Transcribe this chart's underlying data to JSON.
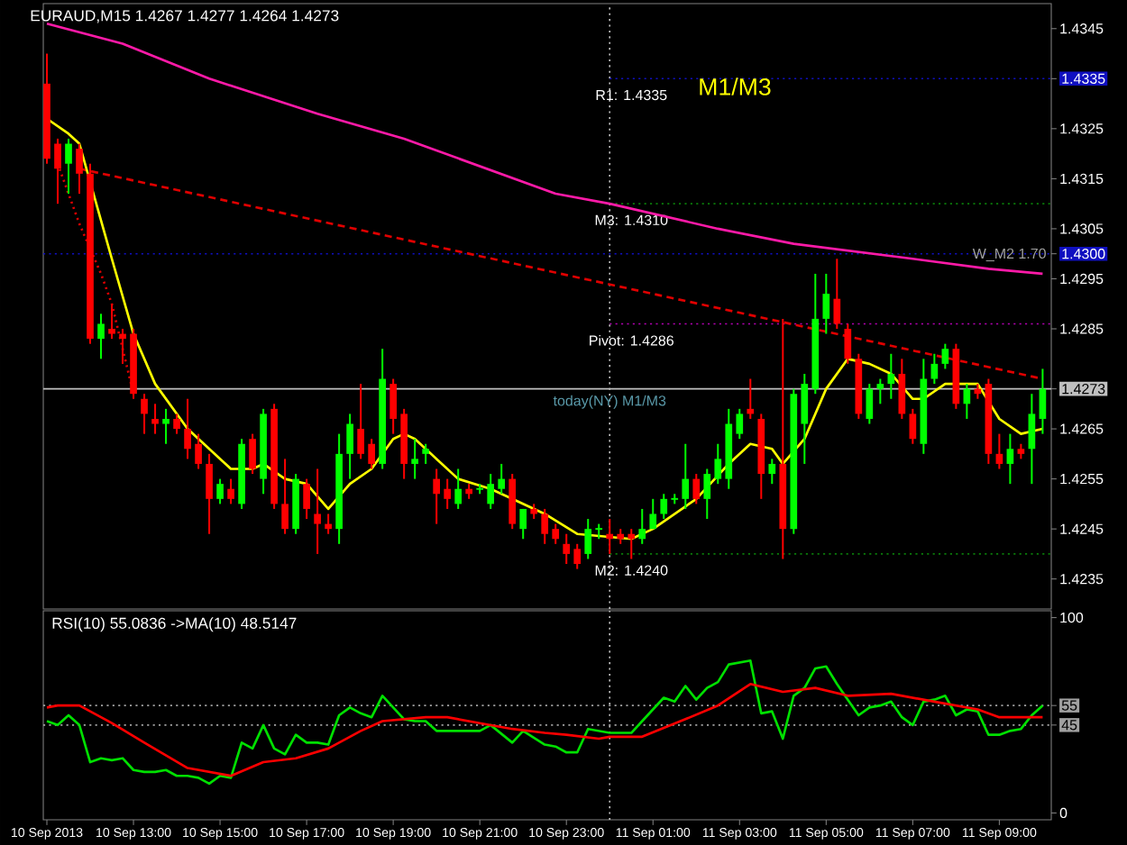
{
  "chart_data": [
    {
      "type": "candlestick",
      "title": "EURAUD,M15 1.4267 1.4277 1.4264 1.4273",
      "x": [
        "2013-09-10T11:00",
        "2013-09-10T11:15",
        "2013-09-10T11:30",
        "2013-09-10T11:45",
        "2013-09-10T12:00",
        "2013-09-10T12:15",
        "2013-09-10T12:30",
        "2013-09-10T12:45",
        "2013-09-10T13:00",
        "2013-09-10T13:15",
        "2013-09-10T13:30",
        "2013-09-10T13:45",
        "2013-09-10T14:00",
        "2013-09-10T14:15",
        "2013-09-10T14:30",
        "2013-09-10T14:45",
        "2013-09-10T15:00",
        "2013-09-10T15:15",
        "2013-09-10T15:30",
        "2013-09-10T15:45",
        "2013-09-10T16:00",
        "2013-09-10T16:15",
        "2013-09-10T16:30",
        "2013-09-10T16:45",
        "2013-09-10T17:00",
        "2013-09-10T17:15",
        "2013-09-10T17:30",
        "2013-09-10T17:45",
        "2013-09-10T18:00",
        "2013-09-10T18:15",
        "2013-09-10T18:30",
        "2013-09-10T18:45",
        "2013-09-10T19:00",
        "2013-09-10T19:15",
        "2013-09-10T19:30",
        "2013-09-10T19:45",
        "2013-09-10T20:00",
        "2013-09-10T20:15",
        "2013-09-10T20:30",
        "2013-09-10T20:45",
        "2013-09-10T21:00",
        "2013-09-10T21:15",
        "2013-09-10T21:30",
        "2013-09-10T21:45",
        "2013-09-10T22:00",
        "2013-09-10T22:15",
        "2013-09-10T22:30",
        "2013-09-10T22:45",
        "2013-09-10T23:00",
        "2013-09-10T23:15",
        "2013-09-10T23:30",
        "2013-09-10T23:45",
        "2013-09-11T00:00",
        "2013-09-11T00:15",
        "2013-09-11T00:30",
        "2013-09-11T00:45",
        "2013-09-11T01:00",
        "2013-09-11T01:15",
        "2013-09-11T01:30",
        "2013-09-11T01:45",
        "2013-09-11T02:00",
        "2013-09-11T02:15",
        "2013-09-11T02:30",
        "2013-09-11T02:45",
        "2013-09-11T03:00",
        "2013-09-11T03:15",
        "2013-09-11T03:30",
        "2013-09-11T03:45",
        "2013-09-11T04:00",
        "2013-09-11T04:15",
        "2013-09-11T04:30",
        "2013-09-11T04:45",
        "2013-09-11T05:00",
        "2013-09-11T05:15",
        "2013-09-11T05:30",
        "2013-09-11T05:45",
        "2013-09-11T06:00",
        "2013-09-11T06:15",
        "2013-09-11T06:30",
        "2013-09-11T06:45",
        "2013-09-11T07:00",
        "2013-09-11T07:15",
        "2013-09-11T07:30",
        "2013-09-11T07:45",
        "2013-09-11T08:00",
        "2013-09-11T08:15",
        "2013-09-11T08:30",
        "2013-09-11T08:45",
        "2013-09-11T09:00",
        "2013-09-11T09:15",
        "2013-09-11T09:30",
        "2013-09-11T09:45",
        "2013-09-11T10:00"
      ],
      "ohlc": [
        [
          1.4334,
          1.434,
          1.4318,
          1.4319
        ],
        [
          1.4322,
          1.4323,
          1.431,
          1.4317
        ],
        [
          1.4318,
          1.4323,
          1.4312,
          1.4322
        ],
        [
          1.4321,
          1.4322,
          1.4312,
          1.4316
        ],
        [
          1.4316,
          1.4318,
          1.4282,
          1.4283
        ],
        [
          1.4283,
          1.4288,
          1.4279,
          1.4286
        ],
        [
          1.4285,
          1.429,
          1.4283,
          1.4284
        ],
        [
          1.4284,
          1.4285,
          1.4278,
          1.4283
        ],
        [
          1.4284,
          1.4285,
          1.4271,
          1.4272
        ],
        [
          1.4271,
          1.4272,
          1.4264,
          1.4268
        ],
        [
          1.4267,
          1.427,
          1.4264,
          1.4266
        ],
        [
          1.4266,
          1.4269,
          1.4262,
          1.4267
        ],
        [
          1.4267,
          1.4268,
          1.4264,
          1.4265
        ],
        [
          1.4265,
          1.4271,
          1.4259,
          1.4261
        ],
        [
          1.4262,
          1.4264,
          1.4257,
          1.4258
        ],
        [
          1.4258,
          1.426,
          1.4244,
          1.4251
        ],
        [
          1.4251,
          1.4255,
          1.425,
          1.4254
        ],
        [
          1.4253,
          1.4255,
          1.425,
          1.4251
        ],
        [
          1.425,
          1.4263,
          1.4249,
          1.4262
        ],
        [
          1.4263,
          1.4264,
          1.4256,
          1.4257
        ],
        [
          1.4255,
          1.4269,
          1.4252,
          1.4268
        ],
        [
          1.4269,
          1.427,
          1.4249,
          1.425
        ],
        [
          1.425,
          1.4259,
          1.4244,
          1.4245
        ],
        [
          1.4245,
          1.4256,
          1.4244,
          1.4255
        ],
        [
          1.4254,
          1.4255,
          1.4247,
          1.4249
        ],
        [
          1.4248,
          1.4257,
          1.424,
          1.4246
        ],
        [
          1.4246,
          1.4248,
          1.4244,
          1.4245
        ],
        [
          1.4245,
          1.4264,
          1.4242,
          1.426
        ],
        [
          1.426,
          1.4268,
          1.4255,
          1.4266
        ],
        [
          1.4265,
          1.4274,
          1.4259,
          1.426
        ],
        [
          1.4262,
          1.4263,
          1.4257,
          1.4258
        ],
        [
          1.4258,
          1.4281,
          1.4257,
          1.4275
        ],
        [
          1.4274,
          1.4275,
          1.4264,
          1.4267
        ],
        [
          1.4268,
          1.4269,
          1.4255,
          1.4258
        ],
        [
          1.4258,
          1.4263,
          1.4255,
          1.4259
        ],
        [
          1.426,
          1.4262,
          1.4258,
          1.4261
        ],
        [
          1.4255,
          1.4257,
          1.4246,
          1.4252
        ],
        [
          1.4253,
          1.4255,
          1.4249,
          1.4251
        ],
        [
          1.425,
          1.4257,
          1.4249,
          1.4253
        ],
        [
          1.4253,
          1.4254,
          1.4251,
          1.4252
        ],
        [
          1.4253,
          1.4254,
          1.4252,
          1.4253
        ],
        [
          1.425,
          1.4256,
          1.4249,
          1.4254
        ],
        [
          1.4253,
          1.4258,
          1.4252,
          1.4255
        ],
        [
          1.4255,
          1.4256,
          1.4245,
          1.4246
        ],
        [
          1.4245,
          1.4249,
          1.4243,
          1.4249
        ],
        [
          1.4249,
          1.425,
          1.4247,
          1.4248
        ],
        [
          1.4248,
          1.4249,
          1.4242,
          1.4244
        ],
        [
          1.4245,
          1.4246,
          1.4242,
          1.4243
        ],
        [
          1.4242,
          1.4244,
          1.4238,
          1.424
        ],
        [
          1.4241,
          1.4242,
          1.4237,
          1.4238
        ],
        [
          1.424,
          1.4247,
          1.4239,
          1.4245
        ],
        [
          1.4245,
          1.4246,
          1.4243,
          1.4245
        ],
        [
          1.4244,
          1.4247,
          1.424,
          1.4243
        ],
        [
          1.4244,
          1.4245,
          1.4242,
          1.4243
        ],
        [
          1.4244,
          1.4245,
          1.4239,
          1.4243
        ],
        [
          1.4243,
          1.4249,
          1.4242,
          1.4245
        ],
        [
          1.4245,
          1.4251,
          1.4245,
          1.4248
        ],
        [
          1.4248,
          1.4252,
          1.4247,
          1.4251
        ],
        [
          1.4251,
          1.4252,
          1.425,
          1.4251
        ],
        [
          1.4251,
          1.4262,
          1.4249,
          1.4255
        ],
        [
          1.4255,
          1.4256,
          1.425,
          1.4251
        ],
        [
          1.4251,
          1.4257,
          1.4247,
          1.4256
        ],
        [
          1.4255,
          1.4262,
          1.4254,
          1.4259
        ],
        [
          1.4255,
          1.4269,
          1.4253,
          1.4266
        ],
        [
          1.4264,
          1.4269,
          1.4263,
          1.4268
        ],
        [
          1.4269,
          1.4275,
          1.4267,
          1.4268
        ],
        [
          1.4267,
          1.4268,
          1.4251,
          1.4256
        ],
        [
          1.4256,
          1.4259,
          1.4254,
          1.4258
        ],
        [
          1.4258,
          1.4287,
          1.4239,
          1.4245
        ],
        [
          1.4245,
          1.4273,
          1.4244,
          1.4272
        ],
        [
          1.4266,
          1.4276,
          1.4258,
          1.4274
        ],
        [
          1.4273,
          1.4296,
          1.4272,
          1.4287
        ],
        [
          1.4287,
          1.4296,
          1.4284,
          1.4292
        ],
        [
          1.4291,
          1.4299,
          1.4285,
          1.4286
        ],
        [
          1.4285,
          1.4286,
          1.4278,
          1.4279
        ],
        [
          1.4279,
          1.428,
          1.4267,
          1.4268
        ],
        [
          1.4267,
          1.4274,
          1.4266,
          1.4273
        ],
        [
          1.4273,
          1.4275,
          1.427,
          1.4274
        ],
        [
          1.4274,
          1.428,
          1.4271,
          1.4276
        ],
        [
          1.4276,
          1.4279,
          1.4267,
          1.4268
        ],
        [
          1.4268,
          1.4269,
          1.4262,
          1.4263
        ],
        [
          1.4262,
          1.4279,
          1.426,
          1.4275
        ],
        [
          1.4275,
          1.428,
          1.4274,
          1.4278
        ],
        [
          1.4278,
          1.4282,
          1.4277,
          1.4281
        ],
        [
          1.4281,
          1.4282,
          1.4269,
          1.427
        ],
        [
          1.427,
          1.4274,
          1.4267,
          1.4273
        ],
        [
          1.4273,
          1.4274,
          1.4271,
          1.4272
        ],
        [
          1.4274,
          1.4275,
          1.4258,
          1.426
        ],
        [
          1.426,
          1.4264,
          1.4257,
          1.4258
        ],
        [
          1.4258,
          1.4264,
          1.4254,
          1.4261
        ],
        [
          1.4261,
          1.4262,
          1.4259,
          1.426
        ],
        [
          1.4261,
          1.4272,
          1.4254,
          1.4268
        ],
        [
          1.4267,
          1.4277,
          1.4264,
          1.4273
        ]
      ],
      "colors": [
        "#ff0000",
        "#ff0000",
        "#00ff00",
        "#ff0000",
        "#ff0000",
        "#00ff00",
        "#ff0000",
        "#ff0000",
        "#ff0000",
        "#ff0000",
        "#ff0000",
        "#00ff00",
        "#ff0000",
        "#ff0000",
        "#ff0000",
        "#ff0000",
        "#00ff00",
        "#ff0000",
        "#00ff00",
        "#ff0000",
        "#00ff00",
        "#ff0000",
        "#ff0000",
        "#00ff00",
        "#ff0000",
        "#ff0000",
        "#ff0000",
        "#00ff00",
        "#00ff00",
        "#ff0000",
        "#ff0000",
        "#00ff00",
        "#ff0000",
        "#ff0000",
        "#00ff00",
        "#00ff00",
        "#ff0000",
        "#ff0000",
        "#00ff00",
        "#ff0000",
        "#00ff00",
        "#00ff00",
        "#00ff00",
        "#ff0000",
        "#00ff00",
        "#ff0000",
        "#ff0000",
        "#ff0000",
        "#ff0000",
        "#ff0000",
        "#00ff00",
        "#00ff00",
        "#ff0000",
        "#ff0000",
        "#ff0000",
        "#00ff00",
        "#00ff00",
        "#00ff00",
        "#00ff00",
        "#00ff00",
        "#ff0000",
        "#00ff00",
        "#00ff00",
        "#00ff00",
        "#00ff00",
        "#ff0000",
        "#ff0000",
        "#00ff00",
        "#ff0000",
        "#00ff00",
        "#00ff00",
        "#00ff00",
        "#00ff00",
        "#ff0000",
        "#ff0000",
        "#ff0000",
        "#00ff00",
        "#00ff00",
        "#00ff00",
        "#ff0000",
        "#ff0000",
        "#00ff00",
        "#00ff00",
        "#00ff00",
        "#ff0000",
        "#00ff00",
        "#ff0000",
        "#ff0000",
        "#ff0000",
        "#00ff00",
        "#ff0000",
        "#00ff00",
        "#00ff00"
      ],
      "series": [
        {
          "type": "line",
          "color": "#ff1aa8",
          "line_style": "solid",
          "x": [
            "2013-09-10T11:00",
            "2013-09-10T12:45",
            "2013-09-10T14:45",
            "2013-09-10T17:15",
            "2013-09-10T19:15",
            "2013-09-10T22:45",
            "2013-09-11T00:00",
            "2013-09-11T02:30",
            "2013-09-11T04:15",
            "2013-09-11T07:00",
            "2013-09-11T08:45",
            "2013-09-11T10:00"
          ],
          "values": [
            1.4346,
            1.4342,
            1.4335,
            1.4328,
            1.4323,
            1.4312,
            1.431,
            1.4305,
            1.4302,
            1.4299,
            1.4297,
            1.4296
          ]
        },
        {
          "type": "line",
          "color": "#e00000",
          "line_style": "dashed",
          "x": [
            "2013-09-10T11:45",
            "2013-09-11T10:00"
          ],
          "values": [
            1.4317,
            1.4275
          ]
        },
        {
          "type": "line",
          "color": "#e00000",
          "line_style": "dotted",
          "x": [
            "2013-09-10T11:15",
            "2013-09-10T11:45",
            "2013-09-10T12:15",
            "2013-09-10T12:30",
            "2013-09-10T12:45",
            "2013-09-10T13:00"
          ],
          "values": [
            1.4318,
            1.4306,
            1.4296,
            1.429,
            1.4281,
            1.4272
          ]
        },
        {
          "type": "line",
          "color": "#ffff00",
          "line_style": "solid",
          "x": [
            "2013-09-10T11:00",
            "2013-09-10T11:30",
            "2013-09-10T11:45",
            "2013-09-10T12:00",
            "2013-09-10T12:30",
            "2013-09-10T13:00",
            "2013-09-10T13:30",
            "2013-09-10T14:15",
            "2013-09-10T15:15",
            "2013-09-10T15:45",
            "2013-09-10T16:00",
            "2013-09-10T16:30",
            "2013-09-10T17:00",
            "2013-09-10T17:30",
            "2013-09-10T18:00",
            "2013-09-10T18:30",
            "2013-09-10T19:00",
            "2013-09-10T19:15",
            "2013-09-10T19:30",
            "2013-09-10T20:00",
            "2013-09-10T20:30",
            "2013-09-10T21:15",
            "2013-09-10T21:45",
            "2013-09-10T22:30",
            "2013-09-10T23:15",
            "2013-09-11T00:30",
            "2013-09-11T01:00",
            "2013-09-11T02:00",
            "2013-09-11T02:45",
            "2013-09-11T03:15",
            "2013-09-11T03:45",
            "2013-09-11T04:00",
            "2013-09-11T04:30",
            "2013-09-11T05:00",
            "2013-09-11T05:30",
            "2013-09-11T06:00",
            "2013-09-11T06:30",
            "2013-09-11T07:00",
            "2013-09-11T07:15",
            "2013-09-11T07:45",
            "2013-09-11T08:30",
            "2013-09-11T09:00",
            "2013-09-11T09:30",
            "2013-09-11T10:00"
          ],
          "values": [
            1.4327,
            1.4324,
            1.4322,
            null,
            1.4299,
            1.4284,
            1.4274,
            1.4265,
            1.4257,
            1.4257,
            1.4258,
            1.4255,
            1.4254,
            1.4249,
            1.4254,
            1.4257,
            1.4263,
            1.4264,
            1.4263,
            1.4259,
            1.4255,
            1.4253,
            1.4251,
            1.4248,
            1.4244,
            1.4243,
            1.4245,
            1.4251,
            1.4258,
            1.4262,
            1.4261,
            1.4258,
            1.4263,
            1.4273,
            1.4279,
            1.4278,
            1.4276,
            1.4271,
            1.4271,
            1.4274,
            1.4274,
            1.4267,
            1.4264,
            1.4265
          ]
        }
      ],
      "xlim": [
        "2013-09-10T10:55",
        "2013-09-11T10:12"
      ],
      "ylim": [
        1.4229,
        1.435
      ],
      "yticks": [
        1.4235,
        1.4245,
        1.4255,
        1.4265,
        {
          "value": 1.4273,
          "label": "1.4273"
        },
        1.4285,
        1.4295,
        {
          "value": 1.43,
          "label": "1.4300"
        },
        1.4305,
        1.4315,
        1.4325,
        1.4335,
        1.4345
      ],
      "tick_labels": "y",
      "ref_lines": [
        {
          "axis": "x",
          "value": "2013-09-11T00:00",
          "label": "today(NY) M1/M3",
          "color": "#c8c8c8",
          "line_style": "dotted"
        },
        {
          "axis": "y",
          "value": 1.4335,
          "label": "R1: 1.4335",
          "color": "#1010c0",
          "line_style": "dotted"
        },
        {
          "axis": "y",
          "value": 1.431,
          "label": "M3: 1.4310",
          "color": "#0a7a0a",
          "line_style": "dotted"
        },
        {
          "axis": "y",
          "value": 1.4286,
          "label": "Pivot: 1.4286",
          "color": "#b000b0",
          "line_style": "dotted"
        },
        {
          "axis": "y",
          "value": 1.424,
          "label": "M2: 1.4240",
          "color": "#0a7a0a",
          "line_style": "dotted"
        },
        {
          "axis": "y",
          "value": 1.43,
          "color": "#1010c0",
          "line_style": "dotted"
        },
        {
          "axis": "y",
          "value": 1.4273,
          "color": "#c0c0c0",
          "line_style": "solid"
        }
      ],
      "annotations": [
        "M1/M3",
        "W_M2 1.70"
      ]
    },
    {
      "type": "line",
      "title": "RSI(10) 55.0836  ->MA(10) 48.5147",
      "series": [
        {
          "color": "#00e000",
          "x": [
            "2013-09-10T11:00",
            "2013-09-10T11:15",
            "2013-09-10T11:30",
            "2013-09-10T11:45",
            "2013-09-10T12:00",
            "2013-09-10T12:15",
            "2013-09-10T12:30",
            "2013-09-10T12:45",
            "2013-09-10T13:00",
            "2013-09-10T13:15",
            "2013-09-10T13:30",
            "2013-09-10T13:45",
            "2013-09-10T14:00",
            "2013-09-10T14:15",
            "2013-09-10T14:30",
            "2013-09-10T14:45",
            "2013-09-10T15:00",
            "2013-09-10T15:15",
            "2013-09-10T15:30",
            "2013-09-10T15:45",
            "2013-09-10T16:00",
            "2013-09-10T16:15",
            "2013-09-10T16:30",
            "2013-09-10T16:45",
            "2013-09-10T17:00",
            "2013-09-10T17:15",
            "2013-09-10T17:30",
            "2013-09-10T17:45",
            "2013-09-10T18:00",
            "2013-09-10T18:15",
            "2013-09-10T18:30",
            "2013-09-10T18:45",
            "2013-09-10T19:00",
            "2013-09-10T19:15",
            "2013-09-10T19:30",
            "2013-09-10T19:45",
            "2013-09-10T20:00",
            "2013-09-10T21:00",
            "2013-09-10T21:15",
            "2013-09-10T21:45",
            "2013-09-10T22:00",
            "2013-09-10T22:30",
            "2013-09-10T22:45",
            "2013-09-10T23:00",
            "2013-09-10T23:15",
            "2013-09-10T23:30",
            "2013-09-11T00:00",
            "2013-09-11T00:30",
            "2013-09-11T00:45",
            "2013-09-11T01:15",
            "2013-09-11T01:30",
            "2013-09-11T01:45",
            "2013-09-11T02:00",
            "2013-09-11T02:15",
            "2013-09-11T02:30",
            "2013-09-11T02:45",
            "2013-09-11T03:15",
            "2013-09-11T03:30",
            "2013-09-11T03:45",
            "2013-09-11T04:00",
            "2013-09-11T04:15",
            "2013-09-11T04:30",
            "2013-09-11T04:45",
            "2013-09-11T05:00",
            "2013-09-11T05:15",
            "2013-09-11T05:30",
            "2013-09-11T05:45",
            "2013-09-11T06:00",
            "2013-09-11T06:15",
            "2013-09-11T06:30",
            "2013-09-11T06:45",
            "2013-09-11T07:00",
            "2013-09-11T07:15",
            "2013-09-11T07:30",
            "2013-09-11T07:45",
            "2013-09-11T08:00",
            "2013-09-11T08:15",
            "2013-09-11T08:30",
            "2013-09-11T08:45",
            "2013-09-11T09:00",
            "2013-09-11T09:15",
            "2013-09-11T09:30",
            "2013-09-11T09:45",
            "2013-09-11T10:00"
          ],
          "values": [
            47,
            45,
            50,
            45,
            26,
            28,
            27,
            28,
            22,
            21,
            21,
            22,
            19,
            19,
            18,
            15,
            19,
            18,
            36,
            33,
            45,
            33,
            30,
            40,
            36,
            36,
            35,
            50,
            54,
            51,
            49,
            60,
            54,
            48,
            47,
            47,
            42,
            42,
            45,
            36,
            42,
            35,
            34,
            31,
            31,
            43,
            41,
            41,
            47,
            59,
            57,
            65,
            58,
            64,
            67,
            76,
            78,
            51,
            52,
            38,
            60,
            64,
            74,
            75,
            66,
            58,
            50,
            54,
            55,
            57,
            49,
            45,
            57,
            58,
            60,
            50,
            53,
            52,
            40,
            40,
            42,
            43,
            50,
            55
          ]
        },
        {
          "color": "#ff0000",
          "x": [
            "2013-09-10T11:00",
            "2013-09-10T11:15",
            "2013-09-10T11:45",
            "2013-09-10T12:30",
            "2013-09-10T13:15",
            "2013-09-10T14:15",
            "2013-09-10T15:15",
            "2013-09-10T16:00",
            "2013-09-10T16:45",
            "2013-09-10T17:30",
            "2013-09-10T18:15",
            "2013-09-10T18:45",
            "2013-09-10T19:45",
            "2013-09-10T20:15",
            "2013-09-10T21:00",
            "2013-09-10T21:45",
            "2013-09-10T22:30",
            "2013-09-10T23:00",
            "2013-09-10T23:45",
            "2013-09-11T00:00",
            "2013-09-11T00:45",
            "2013-09-11T01:45",
            "2013-09-11T02:30",
            "2013-09-11T03:15",
            "2013-09-11T04:00",
            "2013-09-11T04:45",
            "2013-09-11T05:30",
            "2013-09-11T06:30",
            "2013-09-11T07:30",
            "2013-09-11T08:30",
            "2013-09-11T09:00",
            "2013-09-11T10:00"
          ],
          "values": [
            54,
            55,
            55,
            46,
            36,
            23,
            19,
            26,
            28,
            33,
            42,
            47,
            49,
            49,
            46,
            43,
            41,
            40,
            38,
            39,
            39,
            48,
            55,
            66,
            62,
            64,
            60,
            61,
            57,
            53,
            49,
            49
          ]
        }
      ],
      "xlim": [
        "2013-09-10T10:55",
        "2013-09-11T10:12"
      ],
      "ylim": [
        -3.5,
        103.5
      ],
      "xticks": [
        {
          "value": "2013-09-10T11:00",
          "label": "10 Sep 2013"
        },
        {
          "value": "2013-09-10T13:00",
          "label": "10 Sep 13:00"
        },
        {
          "value": "2013-09-10T15:00",
          "label": "10 Sep 15:00"
        },
        {
          "value": "2013-09-10T17:00",
          "label": "10 Sep 17:00"
        },
        {
          "value": "2013-09-10T19:00",
          "label": "10 Sep 19:00"
        },
        {
          "value": "2013-09-10T21:00",
          "label": "10 Sep 21:00"
        },
        {
          "value": "2013-09-10T23:00",
          "label": "10 Sep 23:00"
        },
        {
          "value": "2013-09-11T01:00",
          "label": "11 Sep 01:00"
        },
        {
          "value": "2013-09-11T03:00",
          "label": "11 Sep 03:00"
        },
        {
          "value": "2013-09-11T05:00",
          "label": "11 Sep 05:00"
        },
        {
          "value": "2013-09-11T07:00",
          "label": "11 Sep 07:00"
        },
        {
          "value": "2013-09-11T09:00",
          "label": "11 Sep 09:00"
        }
      ],
      "yticks": [
        0,
        45,
        55,
        100
      ],
      "ref_lines": [
        {
          "axis": "x",
          "value": "2013-09-11T00:00",
          "color": "#c8c8c8",
          "line_style": "dotted"
        },
        {
          "axis": "y",
          "value": 55,
          "color": "#a0a0a0",
          "line_style": "dotted"
        },
        {
          "axis": "y",
          "value": 45,
          "color": "#a0a0a0",
          "line_style": "dotted"
        }
      ]
    }
  ]
}
